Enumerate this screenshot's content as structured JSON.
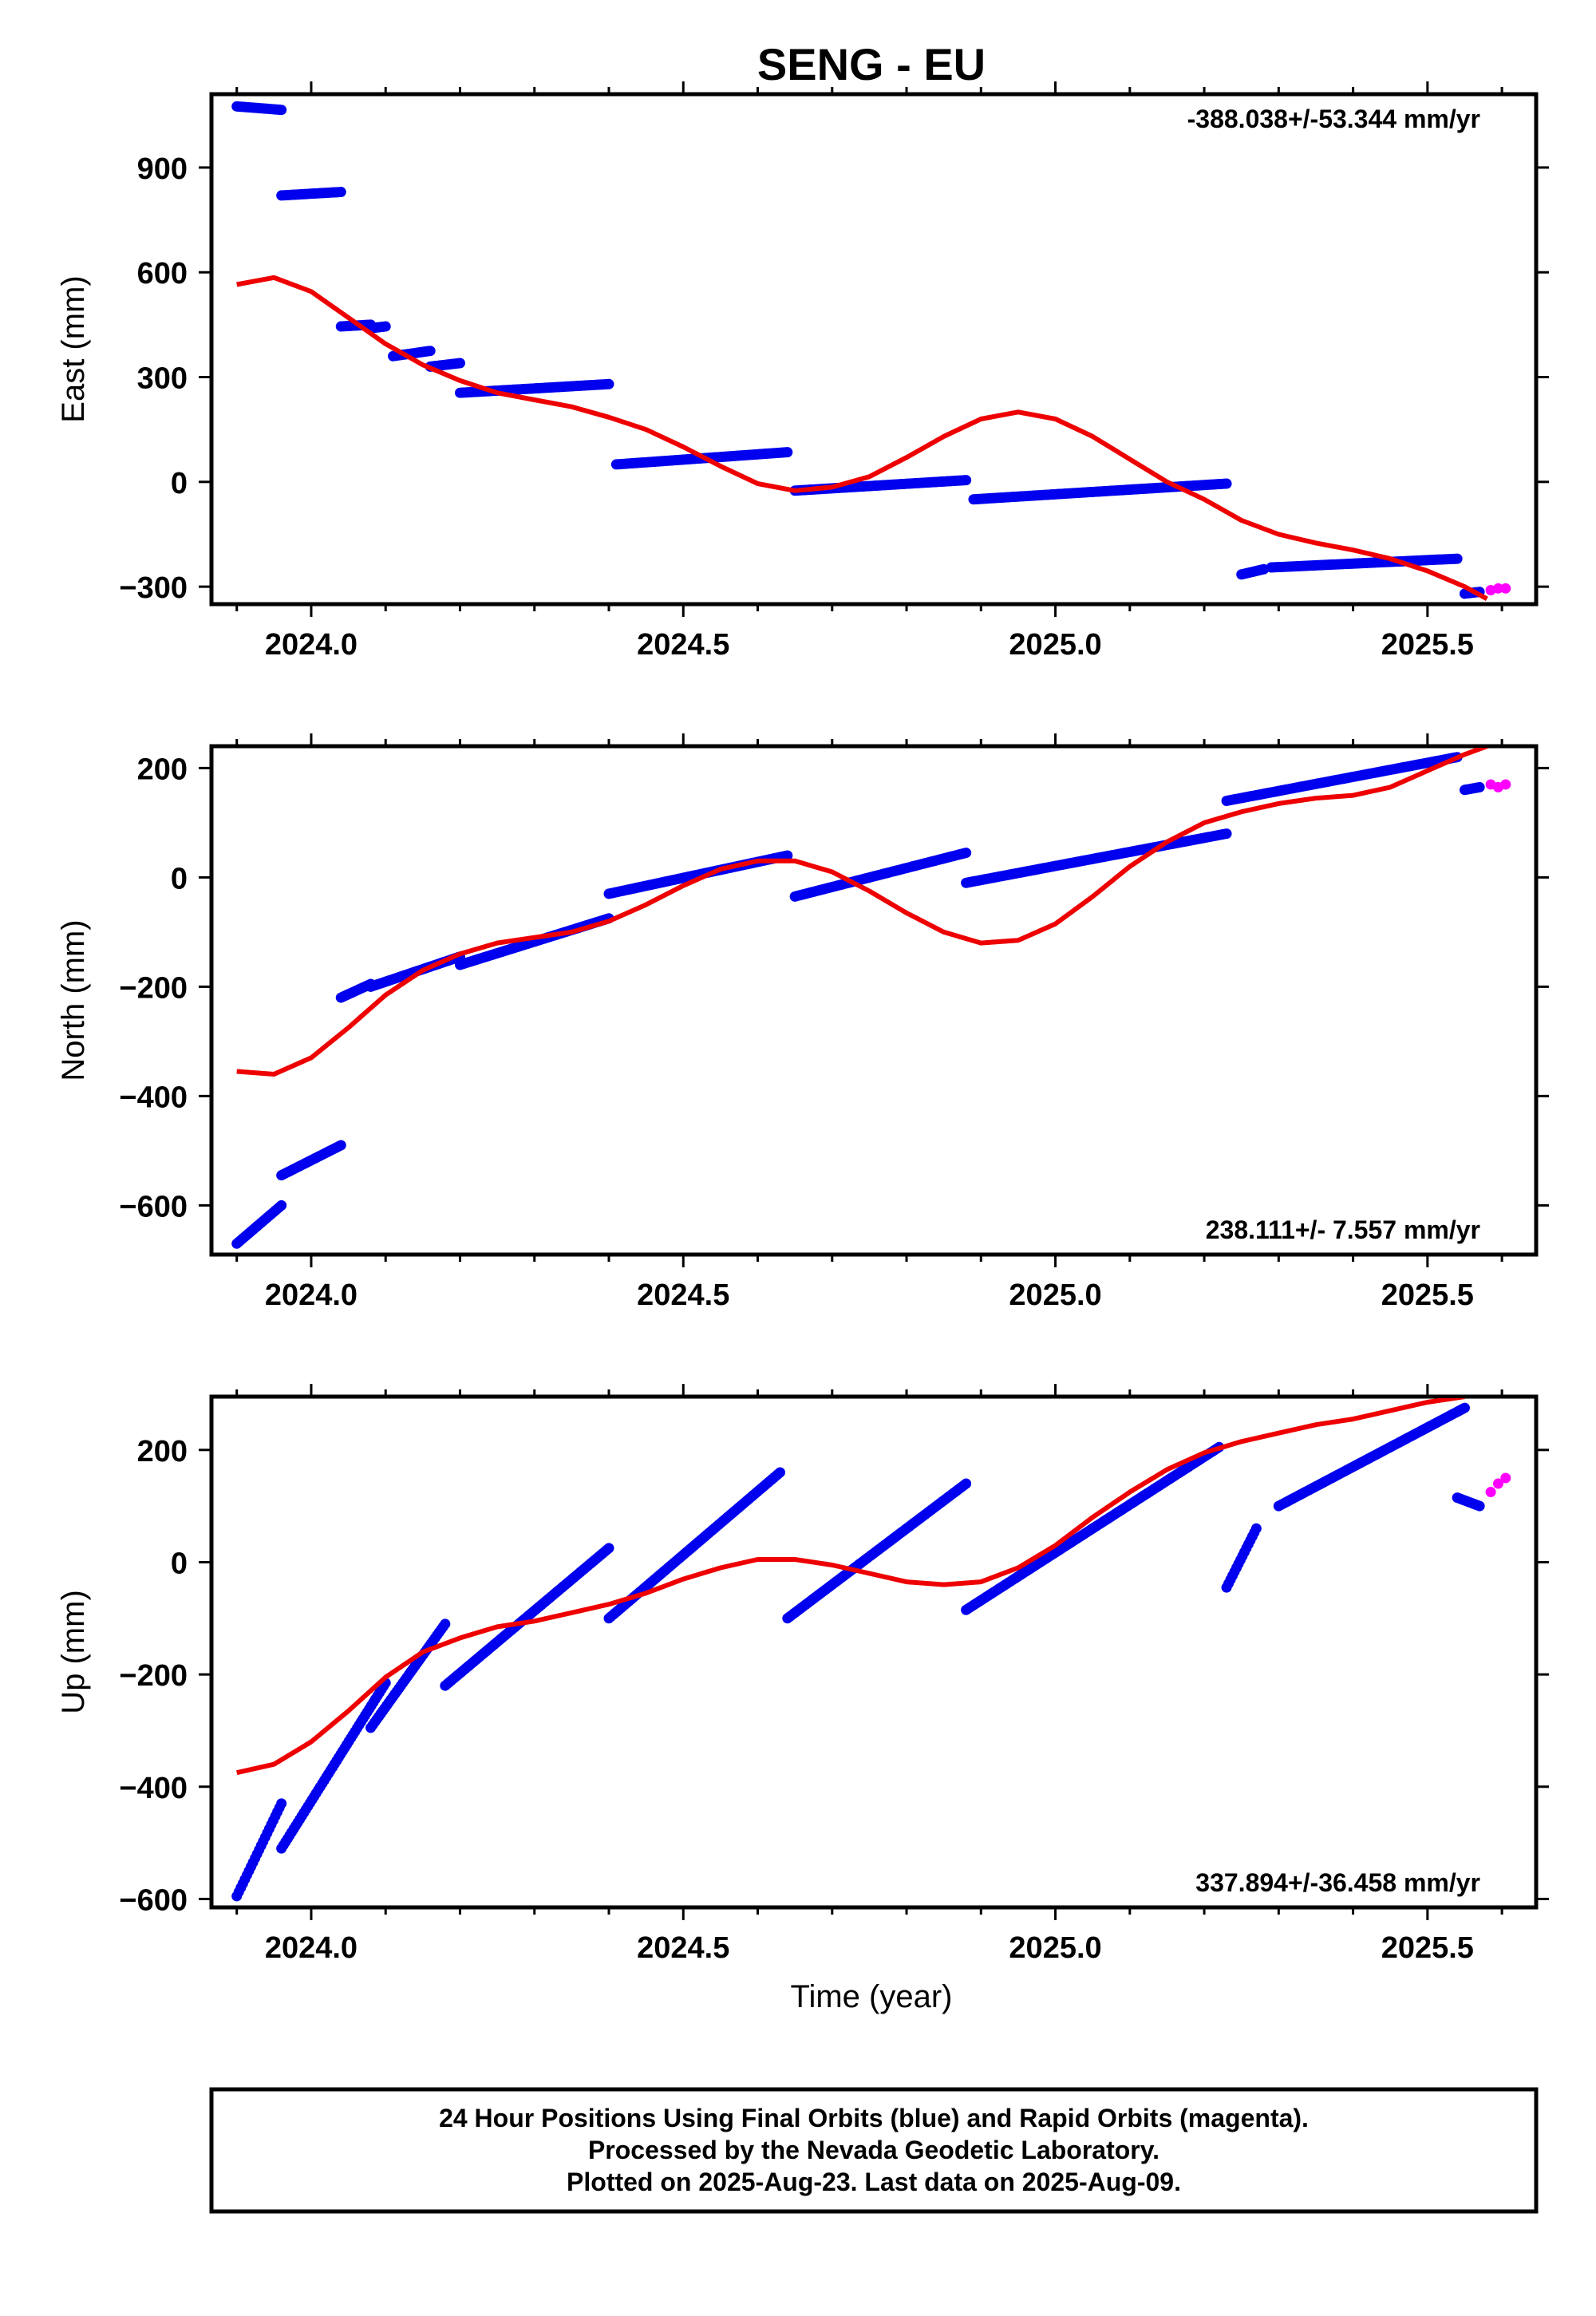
{
  "title": "SENG - EU",
  "xlabel": "Time (year)",
  "colors": {
    "final": "#0000ee",
    "rapid": "#ff00ff",
    "model": "#ee0000",
    "frame": "#000000"
  },
  "footer": {
    "line1": "24 Hour Positions Using Final Orbits (blue) and Rapid Orbits (magenta).",
    "line2": "Processed by the Nevada Geodetic Laboratory.",
    "line3": "Plotted on 2025-Aug-23. Last data on 2025-Aug-09."
  },
  "chart_data": [
    {
      "type": "scatter",
      "ylabel": "East (mm)",
      "rate_label": "-388.038+/-53.344 mm/yr",
      "xlim": [
        2023.866,
        2025.646
      ],
      "ylim": [
        -350,
        1110
      ],
      "xticks": [
        "2024.0",
        "2024.5",
        "2025.0",
        "2025.5"
      ],
      "yticks": [
        "−300",
        "0",
        "300",
        "600",
        "900"
      ],
      "ytick_values": [
        -300,
        0,
        300,
        600,
        900
      ],
      "final_segments": [
        {
          "x": [
            2023.9,
            2023.96
          ],
          "y": [
            1075,
            1065
          ]
        },
        {
          "x": [
            2023.96,
            2024.04
          ],
          "y": [
            820,
            830
          ]
        },
        {
          "x": [
            2024.04,
            2024.08
          ],
          "y": [
            445,
            450
          ]
        },
        {
          "x": [
            2024.08,
            2024.1
          ],
          "y": [
            440,
            445
          ]
        },
        {
          "x": [
            2024.11,
            2024.16
          ],
          "y": [
            360,
            375
          ]
        },
        {
          "x": [
            2024.16,
            2024.2
          ],
          "y": [
            330,
            340
          ]
        },
        {
          "x": [
            2024.2,
            2024.4
          ],
          "y": [
            255,
            280
          ]
        },
        {
          "x": [
            2024.41,
            2024.64
          ],
          "y": [
            50,
            85
          ]
        },
        {
          "x": [
            2024.65,
            2024.88
          ],
          "y": [
            -25,
            5
          ]
        },
        {
          "x": [
            2024.89,
            2025.23
          ],
          "y": [
            -50,
            -5
          ]
        },
        {
          "x": [
            2025.25,
            2025.28
          ],
          "y": [
            -265,
            -250
          ]
        },
        {
          "x": [
            2025.29,
            2025.54
          ],
          "y": [
            -245,
            -220
          ]
        },
        {
          "x": [
            2025.55,
            2025.57
          ],
          "y": [
            -320,
            -315
          ]
        }
      ],
      "rapid_points": [
        {
          "x": 2025.585,
          "y": -310
        },
        {
          "x": 2025.595,
          "y": -305
        },
        {
          "x": 2025.605,
          "y": -305
        }
      ],
      "model_curve": {
        "x": [
          2023.9,
          2023.95,
          2024.0,
          2024.05,
          2024.1,
          2024.15,
          2024.2,
          2024.25,
          2024.3,
          2024.35,
          2024.4,
          2024.45,
          2024.5,
          2024.55,
          2024.6,
          2024.65,
          2024.7,
          2024.75,
          2024.8,
          2024.85,
          2024.9,
          2024.95,
          2025.0,
          2025.05,
          2025.1,
          2025.15,
          2025.2,
          2025.25,
          2025.3,
          2025.35,
          2025.4,
          2025.45,
          2025.5,
          2025.55,
          2025.58
        ],
        "y": [
          565,
          585,
          545,
          470,
          395,
          335,
          290,
          255,
          235,
          215,
          185,
          150,
          100,
          45,
          -5,
          -25,
          -15,
          15,
          70,
          130,
          180,
          200,
          180,
          130,
          65,
          0,
          -50,
          -110,
          -150,
          -175,
          -195,
          -220,
          -255,
          -300,
          -335
        ]
      }
    },
    {
      "type": "scatter",
      "ylabel": "North (mm)",
      "rate_label": "238.111+/- 7.557 mm/yr",
      "xlim": [
        2023.866,
        2025.646
      ],
      "ylim": [
        -690,
        240
      ],
      "xticks": [
        "2024.0",
        "2024.5",
        "2025.0",
        "2025.5"
      ],
      "yticks": [
        "−600",
        "−400",
        "−200",
        "0",
        "200"
      ],
      "ytick_values": [
        -600,
        -400,
        -200,
        0,
        200
      ],
      "final_segments": [
        {
          "x": [
            2023.9,
            2023.96
          ],
          "y": [
            -670,
            -600
          ]
        },
        {
          "x": [
            2023.96,
            2024.04
          ],
          "y": [
            -545,
            -490
          ]
        },
        {
          "x": [
            2024.04,
            2024.08
          ],
          "y": [
            -220,
            -195
          ]
        },
        {
          "x": [
            2024.08,
            2024.2
          ],
          "y": [
            -200,
            -145
          ]
        },
        {
          "x": [
            2024.2,
            2024.4
          ],
          "y": [
            -160,
            -75
          ]
        },
        {
          "x": [
            2024.4,
            2024.64
          ],
          "y": [
            -30,
            40
          ]
        },
        {
          "x": [
            2024.65,
            2024.88
          ],
          "y": [
            -35,
            45
          ]
        },
        {
          "x": [
            2024.88,
            2025.23
          ],
          "y": [
            -10,
            80
          ]
        },
        {
          "x": [
            2025.23,
            2025.54
          ],
          "y": [
            140,
            220
          ]
        },
        {
          "x": [
            2025.55,
            2025.57
          ],
          "y": [
            160,
            165
          ]
        }
      ],
      "rapid_points": [
        {
          "x": 2025.585,
          "y": 170
        },
        {
          "x": 2025.595,
          "y": 165
        },
        {
          "x": 2025.605,
          "y": 170
        }
      ],
      "model_curve": {
        "x": [
          2023.9,
          2023.95,
          2024.0,
          2024.05,
          2024.1,
          2024.15,
          2024.2,
          2024.25,
          2024.3,
          2024.35,
          2024.4,
          2024.45,
          2024.5,
          2024.55,
          2024.6,
          2024.65,
          2024.7,
          2024.75,
          2024.8,
          2024.85,
          2024.9,
          2024.95,
          2025.0,
          2025.05,
          2025.1,
          2025.15,
          2025.2,
          2025.25,
          2025.3,
          2025.35,
          2025.4,
          2025.45,
          2025.5,
          2025.55,
          2025.58
        ],
        "y": [
          -355,
          -360,
          -330,
          -275,
          -215,
          -170,
          -140,
          -120,
          -110,
          -100,
          -80,
          -50,
          -15,
          15,
          30,
          30,
          10,
          -25,
          -65,
          -100,
          -120,
          -115,
          -85,
          -35,
          20,
          65,
          100,
          120,
          135,
          145,
          150,
          165,
          195,
          225,
          240
        ]
      }
    },
    {
      "type": "scatter",
      "ylabel": "Up (mm)",
      "rate_label": "337.894+/-36.458 mm/yr",
      "xlim": [
        2023.866,
        2025.646
      ],
      "ylim": [
        -615,
        295
      ],
      "xticks": [
        "2024.0",
        "2024.5",
        "2025.0",
        "2025.5"
      ],
      "yticks": [
        "−600",
        "−400",
        "−200",
        "0",
        "200"
      ],
      "ytick_values": [
        -600,
        -400,
        -200,
        0,
        200
      ],
      "final_segments": [
        {
          "x": [
            2023.9,
            2023.96
          ],
          "y": [
            -595,
            -430
          ]
        },
        {
          "x": [
            2023.96,
            2024.1
          ],
          "y": [
            -510,
            -215
          ]
        },
        {
          "x": [
            2024.08,
            2024.18
          ],
          "y": [
            -295,
            -110
          ]
        },
        {
          "x": [
            2024.18,
            2024.4
          ],
          "y": [
            -220,
            25
          ]
        },
        {
          "x": [
            2024.4,
            2024.63
          ],
          "y": [
            -100,
            160
          ]
        },
        {
          "x": [
            2024.64,
            2024.88
          ],
          "y": [
            -100,
            140
          ]
        },
        {
          "x": [
            2024.88,
            2025.22
          ],
          "y": [
            -85,
            205
          ]
        },
        {
          "x": [
            2025.23,
            2025.27
          ],
          "y": [
            -45,
            60
          ]
        },
        {
          "x": [
            2025.3,
            2025.55
          ],
          "y": [
            100,
            275
          ]
        },
        {
          "x": [
            2025.54,
            2025.57
          ],
          "y": [
            115,
            100
          ]
        }
      ],
      "rapid_points": [
        {
          "x": 2025.585,
          "y": 125
        },
        {
          "x": 2025.595,
          "y": 140
        },
        {
          "x": 2025.605,
          "y": 150
        }
      ],
      "model_curve": {
        "x": [
          2023.9,
          2023.95,
          2024.0,
          2024.05,
          2024.1,
          2024.15,
          2024.2,
          2024.25,
          2024.3,
          2024.35,
          2024.4,
          2024.45,
          2024.5,
          2024.55,
          2024.6,
          2024.65,
          2024.7,
          2024.75,
          2024.8,
          2024.85,
          2024.9,
          2024.95,
          2025.0,
          2025.05,
          2025.1,
          2025.15,
          2025.2,
          2025.25,
          2025.3,
          2025.35,
          2025.4,
          2025.45,
          2025.5,
          2025.55
        ],
        "y": [
          -375,
          -360,
          -320,
          -265,
          -205,
          -160,
          -135,
          -115,
          -105,
          -90,
          -75,
          -55,
          -30,
          -10,
          5,
          5,
          -5,
          -20,
          -35,
          -40,
          -35,
          -10,
          30,
          80,
          125,
          165,
          195,
          215,
          230,
          245,
          255,
          270,
          285,
          295
        ]
      }
    }
  ]
}
